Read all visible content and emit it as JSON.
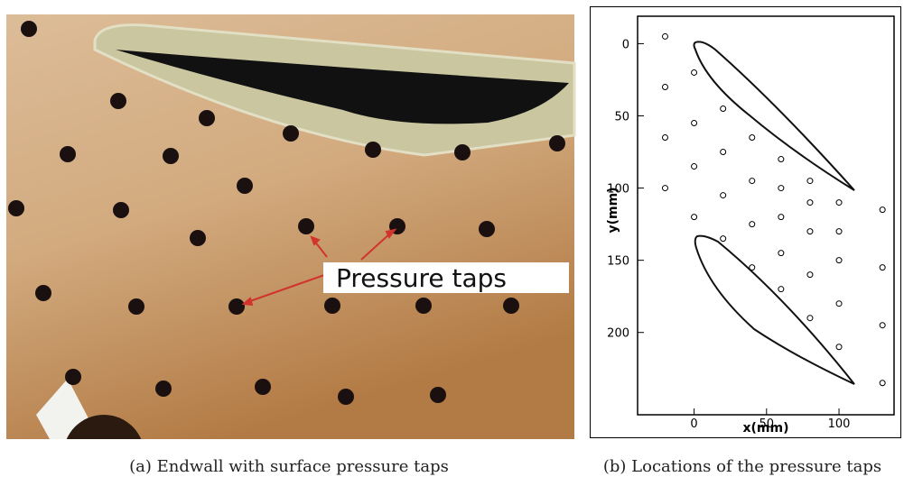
{
  "figure_a": {
    "annotation": "Pressure taps",
    "caption": "(a) Endwall with surface pressure taps"
  },
  "chart_data": {
    "type": "scatter",
    "caption": "(b) Locations of the pressure taps",
    "xlabel": "x(mm)",
    "ylabel": "y(mm)",
    "xlim": [
      -39,
      138
    ],
    "ylim": [
      -19,
      257
    ],
    "y_inverted": true,
    "xticks": [
      0,
      50,
      100
    ],
    "yticks": [
      0,
      50,
      100,
      150,
      200
    ],
    "color": "#000000",
    "x": [
      -20,
      -20,
      -20,
      -20,
      0,
      0,
      0,
      0,
      20,
      20,
      20,
      20,
      40,
      40,
      40,
      40,
      60,
      60,
      60,
      60,
      60,
      80,
      80,
      80,
      80,
      80,
      100,
      100,
      100,
      100,
      100,
      130,
      130,
      130,
      130
    ],
    "values": [
      -5,
      30,
      65,
      100,
      20,
      55,
      85,
      120,
      45,
      75,
      105,
      135,
      65,
      95,
      125,
      155,
      80,
      100,
      120,
      145,
      170,
      95,
      110,
      130,
      160,
      190,
      110,
      130,
      150,
      180,
      210,
      115,
      155,
      195,
      235
    ]
  }
}
